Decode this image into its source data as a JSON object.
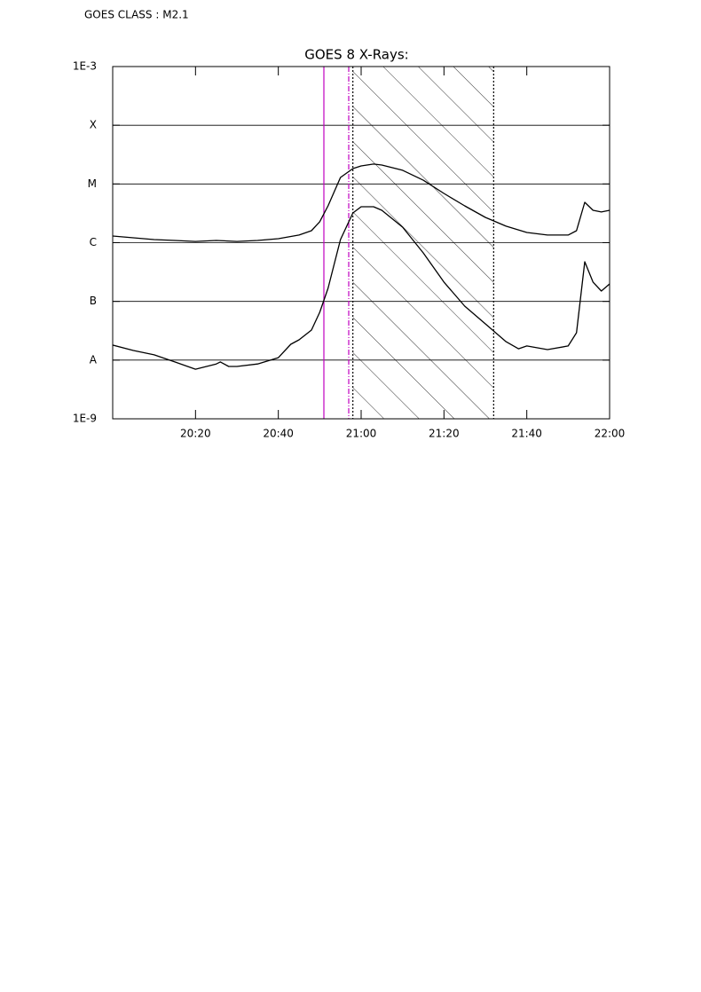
{
  "chart_data": {
    "type": "line",
    "annotation": "GOES CLASS : M2.1",
    "title": "GOES 8 X-Rays:",
    "log_y": true,
    "grid": true,
    "xlim": [
      "20:00",
      "22:00"
    ],
    "xticks": [
      "20:20",
      "20:40",
      "21:00",
      "21:20",
      "21:40",
      "22:00"
    ],
    "ylim": [
      1e-09,
      0.001
    ],
    "yticks": [
      {
        "value": 1e-09,
        "label": "1E-9"
      },
      {
        "value": 1e-08,
        "label": "A"
      },
      {
        "value": 1e-07,
        "label": "B"
      },
      {
        "value": 1e-06,
        "label": "C"
      },
      {
        "value": 1e-05,
        "label": "M"
      },
      {
        "value": 0.0001,
        "label": "X"
      },
      {
        "value": 0.001,
        "label": "1E-3"
      }
    ],
    "markers": [
      {
        "x": "20:51",
        "color": "#c000c0",
        "style": "solid"
      },
      {
        "x": "20:57",
        "color": "#c000c0",
        "style": "dashdot"
      },
      {
        "x": "20:58",
        "color": "#000000",
        "style": "dotted"
      },
      {
        "x": "21:32",
        "color": "#000000",
        "style": "dotted"
      }
    ],
    "shaded": {
      "x0": "20:58",
      "x1": "21:32"
    },
    "series": [
      {
        "color": "#000000",
        "x": [
          "20:00",
          "20:05",
          "20:10",
          "20:15",
          "20:20",
          "20:25",
          "20:30",
          "20:35",
          "20:40",
          "20:45",
          "20:48",
          "20:50",
          "20:52",
          "20:55",
          "20:58",
          "21:00",
          "21:03",
          "21:05",
          "21:10",
          "21:15",
          "21:20",
          "21:25",
          "21:30",
          "21:35",
          "21:40",
          "21:45",
          "21:50",
          "21:52",
          "21:54",
          "21:56",
          "21:58",
          "22:00"
        ],
        "values": [
          1.3e-06,
          1.21e-06,
          1.13e-06,
          1.09e-06,
          1.05e-06,
          1.09e-06,
          1.05e-06,
          1.09e-06,
          1.17e-06,
          1.35e-06,
          1.6e-06,
          2.27e-06,
          4.24e-06,
          1.29e-05,
          1.83e-05,
          2.03e-05,
          2.18e-05,
          2.1e-05,
          1.71e-05,
          1.16e-05,
          6.9e-06,
          4.24e-06,
          2.7e-06,
          1.91e-06,
          1.49e-06,
          1.35e-06,
          1.35e-06,
          1.6e-06,
          4.87e-06,
          3.56e-06,
          3.33e-06,
          3.56e-06
        ]
      },
      {
        "color": "#000000",
        "x": [
          "20:00",
          "20:05",
          "20:10",
          "20:15",
          "20:20",
          "20:25",
          "20:26",
          "20:28",
          "20:30",
          "20:35",
          "20:40",
          "20:43",
          "20:45",
          "20:48",
          "20:50",
          "20:52",
          "20:55",
          "20:58",
          "21:00",
          "21:03",
          "21:05",
          "21:10",
          "21:15",
          "21:20",
          "21:25",
          "21:30",
          "21:35",
          "21:38",
          "21:40",
          "21:45",
          "21:50",
          "21:52",
          "21:54",
          "21:56",
          "21:58",
          "22:00"
        ],
        "values": [
          1.8e-08,
          1.46e-08,
          1.23e-08,
          9.3e-09,
          7e-09,
          8.6e-09,
          9.3e-09,
          7.8e-09,
          7.8e-09,
          8.6e-09,
          1.1e-08,
          1.86e-08,
          2.21e-08,
          3.25e-08,
          6.5e-08,
          1.67e-07,
          1.13e-06,
          3.21e-06,
          4.09e-06,
          4.09e-06,
          3.56e-06,
          1.84e-06,
          6.7e-07,
          2.13e-07,
          8.3e-08,
          4.14e-08,
          2.06e-08,
          1.56e-08,
          1.74e-08,
          1.51e-08,
          1.74e-08,
          2.92e-08,
          4.73e-07,
          2.13e-07,
          1.5e-07,
          1.98e-07
        ]
      }
    ]
  }
}
